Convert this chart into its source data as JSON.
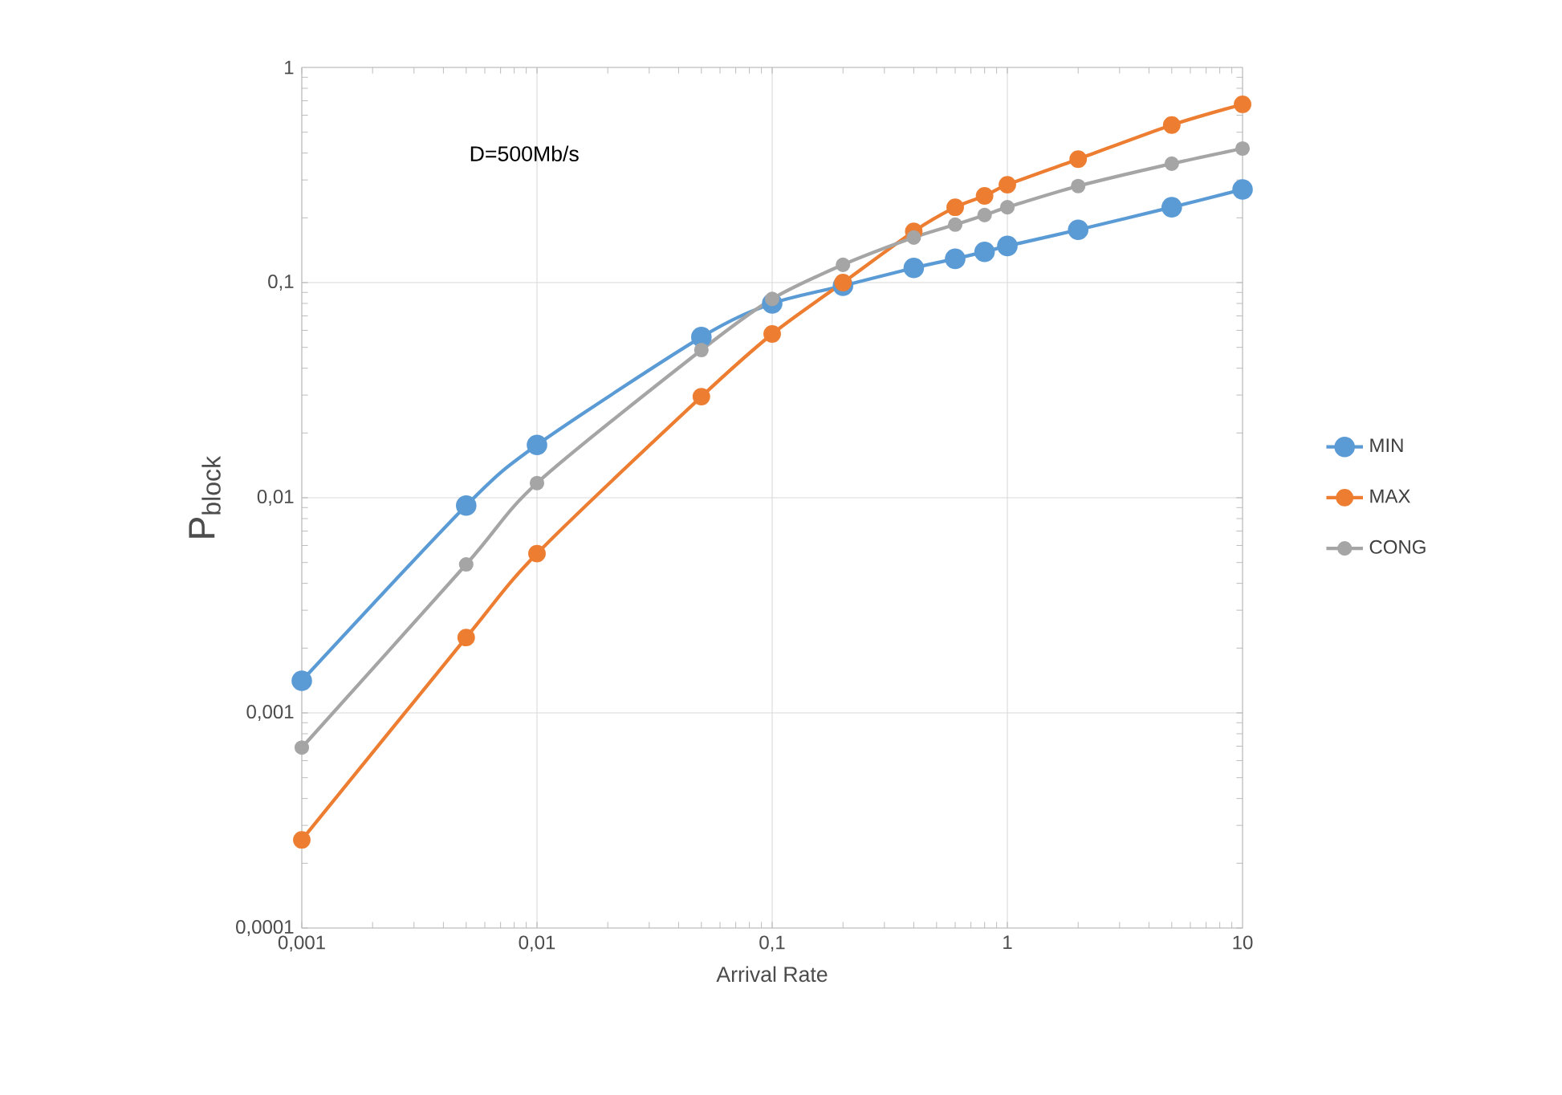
{
  "chart_data": {
    "type": "line",
    "xlabel": "Arrival Rate",
    "ylabel": "P$_{block}$",
    "log": "xy",
    "x": [
      0.001,
      0.005,
      0.01,
      0.05,
      0.1,
      0.2,
      0.4,
      0.6,
      0.8,
      1,
      2,
      5,
      10
    ],
    "series": [
      {
        "name": "MIN",
        "color": "#5b9bd5",
        "values": [
          0.00141,
          0.0092,
          0.0176,
          0.0558,
          0.08,
          0.0966,
          0.117,
          0.129,
          0.139,
          0.148,
          0.176,
          0.224,
          0.271
        ]
      },
      {
        "name": "MAX",
        "color": "#ed7d31",
        "values": [
          0.000257,
          0.00224,
          0.0055,
          0.0295,
          0.0577,
          0.1,
          0.173,
          0.224,
          0.253,
          0.285,
          0.375,
          0.54,
          0.674
        ]
      },
      {
        "name": "CONG",
        "color": "#a5a5a5",
        "values": [
          0.00069,
          0.0049,
          0.0117,
          0.0486,
          0.084,
          0.121,
          0.162,
          0.186,
          0.206,
          0.224,
          0.281,
          0.357,
          0.42
        ]
      }
    ],
    "xlim": [
      0.001,
      10
    ],
    "ylim": [
      0.0001,
      1
    ],
    "xticks": [
      {
        "value": 0.001,
        "label": "0,001"
      },
      {
        "value": 0.01,
        "label": "0,01"
      },
      {
        "value": 0.1,
        "label": "0,1"
      },
      1,
      10
    ],
    "yticks": [
      {
        "value": 0.0001,
        "label": "0,0001"
      },
      {
        "value": 0.001,
        "label": "0,001"
      },
      {
        "value": 0.01,
        "label": "0,01"
      },
      {
        "value": 0.1,
        "label": "0,1"
      },
      1
    ],
    "grid": true,
    "legend": "right",
    "marker": "circle",
    "line_style": "solid",
    "annotations": [
      "D=500Mb/s"
    ]
  }
}
